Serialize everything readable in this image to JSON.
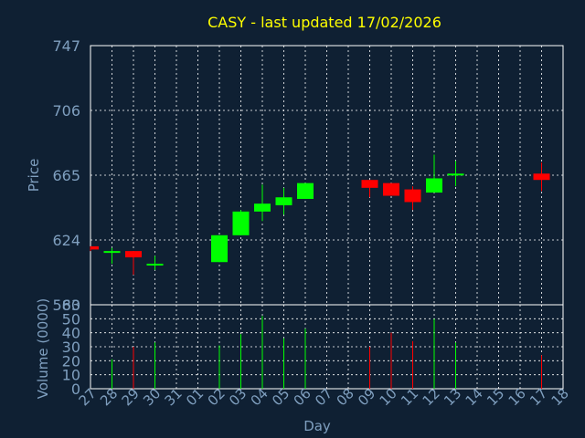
{
  "colors": {
    "background": "#0f2033",
    "title": "#ffff00",
    "axis_text": "#7f9fbf",
    "frame": "#ffffff",
    "grid": "#ffffff",
    "up": "#00ff00",
    "down": "#ff0000"
  },
  "chart_data": [
    {
      "type": "candlestick",
      "title": "CASY - last updated 17/02/2026",
      "ylabel": "Price",
      "ylim": [
        583,
        747
      ],
      "yticks": [
        583,
        624,
        665,
        706,
        747
      ],
      "grid": true,
      "x": [
        "27",
        "28",
        "29",
        "30",
        "31",
        "01",
        "02",
        "03",
        "04",
        "05",
        "06",
        "07",
        "08",
        "09",
        "10",
        "11",
        "12",
        "13",
        "14",
        "15",
        "16",
        "17",
        "18"
      ],
      "candles": [
        {
          "day": "27",
          "open": 620,
          "close": 618,
          "high": 620,
          "low": 617
        },
        {
          "day": "28",
          "open": 617,
          "close": 617,
          "high": 619,
          "low": 609
        },
        {
          "day": "29",
          "open": 617,
          "close": 613,
          "high": 617,
          "low": 602
        },
        {
          "day": "30",
          "open": 609,
          "close": 609,
          "high": 614,
          "low": 605
        },
        {
          "day": "02",
          "open": 610,
          "close": 627,
          "high": 627,
          "low": 610
        },
        {
          "day": "03",
          "open": 627,
          "close": 642,
          "high": 643,
          "low": 627
        },
        {
          "day": "04",
          "open": 642,
          "close": 647,
          "high": 659,
          "low": 636
        },
        {
          "day": "05",
          "open": 646,
          "close": 651,
          "high": 657,
          "low": 640
        },
        {
          "day": "06",
          "open": 650,
          "close": 660,
          "high": 660,
          "low": 650
        },
        {
          "day": "09",
          "open": 662,
          "close": 657,
          "high": 662,
          "low": 651
        },
        {
          "day": "10",
          "open": 660,
          "close": 652,
          "high": 660,
          "low": 652
        },
        {
          "day": "11",
          "open": 656,
          "close": 648,
          "high": 658,
          "low": 643
        },
        {
          "day": "12",
          "open": 654,
          "close": 663,
          "high": 678,
          "low": 654
        },
        {
          "day": "13",
          "open": 665,
          "close": 666,
          "high": 674,
          "low": 658
        },
        {
          "day": "17",
          "open": 666,
          "close": 662,
          "high": 673,
          "low": 655
        }
      ]
    },
    {
      "type": "bar",
      "ylabel": "Volume (0000)",
      "xlabel": "Day",
      "ylim": [
        0,
        60
      ],
      "yticks": [
        0,
        10,
        20,
        30,
        40,
        50,
        60
      ],
      "grid": true,
      "x": [
        "27",
        "28",
        "29",
        "30",
        "31",
        "01",
        "02",
        "03",
        "04",
        "05",
        "06",
        "07",
        "08",
        "09",
        "10",
        "11",
        "12",
        "13",
        "14",
        "15",
        "16",
        "17",
        "18"
      ],
      "bars": [
        {
          "day": "28",
          "value": 21,
          "direction": "up"
        },
        {
          "day": "29",
          "value": 30,
          "direction": "down"
        },
        {
          "day": "30",
          "value": 33,
          "direction": "up"
        },
        {
          "day": "02",
          "value": 31,
          "direction": "up"
        },
        {
          "day": "03",
          "value": 39,
          "direction": "up"
        },
        {
          "day": "04",
          "value": 52,
          "direction": "up"
        },
        {
          "day": "05",
          "value": 36,
          "direction": "up"
        },
        {
          "day": "06",
          "value": 43,
          "direction": "up"
        },
        {
          "day": "09",
          "value": 30,
          "direction": "down"
        },
        {
          "day": "10",
          "value": 40,
          "direction": "down"
        },
        {
          "day": "11",
          "value": 34,
          "direction": "down"
        },
        {
          "day": "12",
          "value": 50,
          "direction": "up"
        },
        {
          "day": "13",
          "value": 33,
          "direction": "up"
        },
        {
          "day": "17",
          "value": 24,
          "direction": "down"
        }
      ]
    }
  ]
}
